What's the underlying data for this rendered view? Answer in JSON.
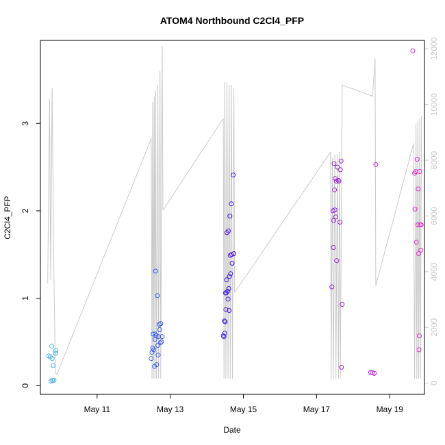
{
  "chart_data": {
    "type": "scatter",
    "title": "ATOM4 Northbound C2Cl4_PFP",
    "xlabel": "Date",
    "ylabel": "C2Cl4_PFP",
    "x_unit": "date (May 2016), day-of-month with fractional time",
    "xlim": [
      9.45,
      19.95
    ],
    "ylim": [
      -0.1,
      3.95
    ],
    "y_ticks": [
      0,
      1,
      2,
      3
    ],
    "y_tick_labels": [
      "0",
      "1",
      "2",
      "3"
    ],
    "x_ticks": [
      11,
      13,
      15,
      17,
      19
    ],
    "x_tick_labels": [
      "May 11",
      "May 13",
      "May 15",
      "May 17",
      "May 19"
    ],
    "secondary_axis": {
      "side": "right",
      "color": "#c8c8c8",
      "lim": [
        -400,
        12300
      ],
      "ticks": [
        0,
        2000,
        4000,
        6000,
        8000,
        10000,
        12000
      ],
      "tick_labels": [
        "0",
        "2000",
        "4000",
        "6000",
        "8000",
        "10000",
        "12000"
      ]
    },
    "grid": false,
    "legend": "none",
    "series": [
      {
        "kind": "points",
        "color_scale": "time gradient light blue -> blue -> purple -> magenta",
        "points": [
          [
            9.68,
            0.34
          ],
          [
            9.72,
            0.33
          ],
          [
            9.74,
            0.05
          ],
          [
            9.76,
            0.45
          ],
          [
            9.77,
            0.31
          ],
          [
            9.78,
            0.06
          ],
          [
            9.8,
            0.23
          ],
          [
            9.82,
            0.06
          ],
          [
            9.86,
            0.37
          ],
          [
            9.87,
            0.4
          ],
          [
            12.48,
            0.31
          ],
          [
            12.5,
            0.38
          ],
          [
            12.52,
            0.43
          ],
          [
            12.53,
            0.59
          ],
          [
            12.55,
            0.41
          ],
          [
            12.57,
            0.22
          ],
          [
            12.58,
            0.53
          ],
          [
            12.59,
            0.59
          ],
          [
            12.6,
            1.31
          ],
          [
            12.61,
            0.57
          ],
          [
            12.63,
            0.24
          ],
          [
            12.65,
            1.03
          ],
          [
            12.66,
            0.46
          ],
          [
            12.67,
            0.35
          ],
          [
            12.68,
            0.56
          ],
          [
            12.7,
            0.7
          ],
          [
            12.71,
            0.64
          ],
          [
            12.73,
            0.49
          ],
          [
            12.74,
            0.71
          ],
          [
            12.76,
            0.5
          ],
          [
            12.78,
            0.56
          ],
          [
            14.45,
            0.57
          ],
          [
            14.47,
            0.56
          ],
          [
            14.48,
            0.74
          ],
          [
            14.49,
            0.6
          ],
          [
            14.5,
            0.73
          ],
          [
            14.51,
            1.06
          ],
          [
            14.52,
            0.87
          ],
          [
            14.53,
            1.06
          ],
          [
            14.54,
            1.21
          ],
          [
            14.55,
            1.75
          ],
          [
            14.57,
            1.08
          ],
          [
            14.58,
            0.99
          ],
          [
            14.59,
            1.77
          ],
          [
            14.6,
            1.11
          ],
          [
            14.61,
            0.86
          ],
          [
            14.62,
            1.25
          ],
          [
            14.63,
            1.94
          ],
          [
            14.64,
            1.49
          ],
          [
            14.65,
            1.28
          ],
          [
            14.67,
            2.08
          ],
          [
            14.68,
            1.5
          ],
          [
            14.69,
            1.4
          ],
          [
            14.72,
            2.41
          ],
          [
            14.74,
            1.51
          ],
          [
            17.42,
            1.13
          ],
          [
            17.45,
            2.0
          ],
          [
            17.46,
            1.58
          ],
          [
            17.47,
            1.89
          ],
          [
            17.48,
            2.54
          ],
          [
            17.49,
            2.24
          ],
          [
            17.5,
            2.01
          ],
          [
            17.51,
            2.37
          ],
          [
            17.52,
            1.93
          ],
          [
            17.54,
            2.34
          ],
          [
            17.55,
            1.43
          ],
          [
            17.57,
            2.5
          ],
          [
            17.59,
            2.35
          ],
          [
            17.61,
            2.34
          ],
          [
            17.64,
            1.87
          ],
          [
            17.65,
            2.47
          ],
          [
            17.67,
            2.57
          ],
          [
            17.68,
            0.21
          ],
          [
            17.7,
            0.93
          ],
          [
            18.48,
            0.15
          ],
          [
            18.53,
            0.15
          ],
          [
            18.58,
            0.14
          ],
          [
            18.62,
            2.53
          ],
          [
            19.63,
            3.83
          ],
          [
            19.68,
            2.43
          ],
          [
            19.69,
            2.02
          ],
          [
            19.71,
            2.45
          ],
          [
            19.73,
            1.64
          ],
          [
            19.75,
            2.59
          ],
          [
            19.77,
            1.84
          ],
          [
            19.78,
            2.25
          ],
          [
            19.79,
            1.51
          ],
          [
            19.8,
            0.41
          ],
          [
            19.81,
            0.57
          ],
          [
            19.82,
            2.45
          ],
          [
            19.83,
            1.84
          ],
          [
            19.85,
            1.55
          ],
          [
            19.86,
            1.84
          ]
        ]
      },
      {
        "kind": "line",
        "axis": "secondary",
        "color": "#c8c8c8",
        "segments": [
          [
            [
              9.65,
              3580
            ],
            [
              9.7,
              10200
            ],
            [
              9.73,
              3700
            ],
            [
              9.77,
              10600
            ],
            [
              9.82,
              3800
            ],
            [
              9.86,
              380
            ],
            [
              9.9,
              310
            ]
          ],
          [
            [
              9.9,
              310
            ],
            [
              12.48,
              8780
            ]
          ],
          [
            [
              12.48,
              8780
            ],
            [
              12.5,
              160
            ],
            [
              12.52,
              10100
            ],
            [
              12.54,
              160
            ],
            [
              12.56,
              10300
            ],
            [
              12.58,
              160
            ],
            [
              12.6,
              10500
            ],
            [
              12.62,
              160
            ],
            [
              12.66,
              10700
            ],
            [
              12.68,
              160
            ],
            [
              12.72,
              11200
            ],
            [
              12.74,
              160
            ],
            [
              12.78,
              12100
            ],
            [
              12.8,
              6200
            ]
          ],
          [
            [
              12.8,
              6200
            ],
            [
              14.45,
              9500
            ]
          ],
          [
            [
              14.45,
              9500
            ],
            [
              14.47,
              160
            ],
            [
              14.49,
              10800
            ],
            [
              14.52,
              160
            ],
            [
              14.55,
              10800
            ],
            [
              14.58,
              160
            ],
            [
              14.61,
              10700
            ],
            [
              14.64,
              160
            ],
            [
              14.67,
              10700
            ],
            [
              14.7,
              160
            ],
            [
              14.74,
              10600
            ],
            [
              14.76,
              3250
            ]
          ],
          [
            [
              14.76,
              3250
            ],
            [
              17.38,
              8290
            ]
          ],
          [
            [
              17.38,
              8290
            ],
            [
              17.4,
              160
            ],
            [
              17.43,
              8100
            ],
            [
              17.46,
              160
            ],
            [
              17.5,
              8200
            ],
            [
              17.53,
              160
            ],
            [
              17.57,
              8200
            ],
            [
              17.6,
              160
            ],
            [
              17.63,
              8300
            ],
            [
              17.65,
              160
            ],
            [
              17.7,
              10700
            ]
          ],
          [
            [
              17.7,
              10700
            ],
            [
              18.53,
              10300
            ],
            [
              18.6,
              11650
            ],
            [
              18.62,
              3500
            ]
          ],
          [
            [
              18.62,
              3500
            ],
            [
              19.65,
              8600
            ]
          ],
          [
            [
              19.65,
              8600
            ],
            [
              19.68,
              160
            ],
            [
              19.72,
              9300
            ],
            [
              19.74,
              160
            ],
            [
              19.77,
              9400
            ],
            [
              19.79,
              160
            ],
            [
              19.82,
              9500
            ],
            [
              19.84,
              160
            ],
            [
              19.87,
              9600
            ]
          ]
        ]
      }
    ]
  }
}
